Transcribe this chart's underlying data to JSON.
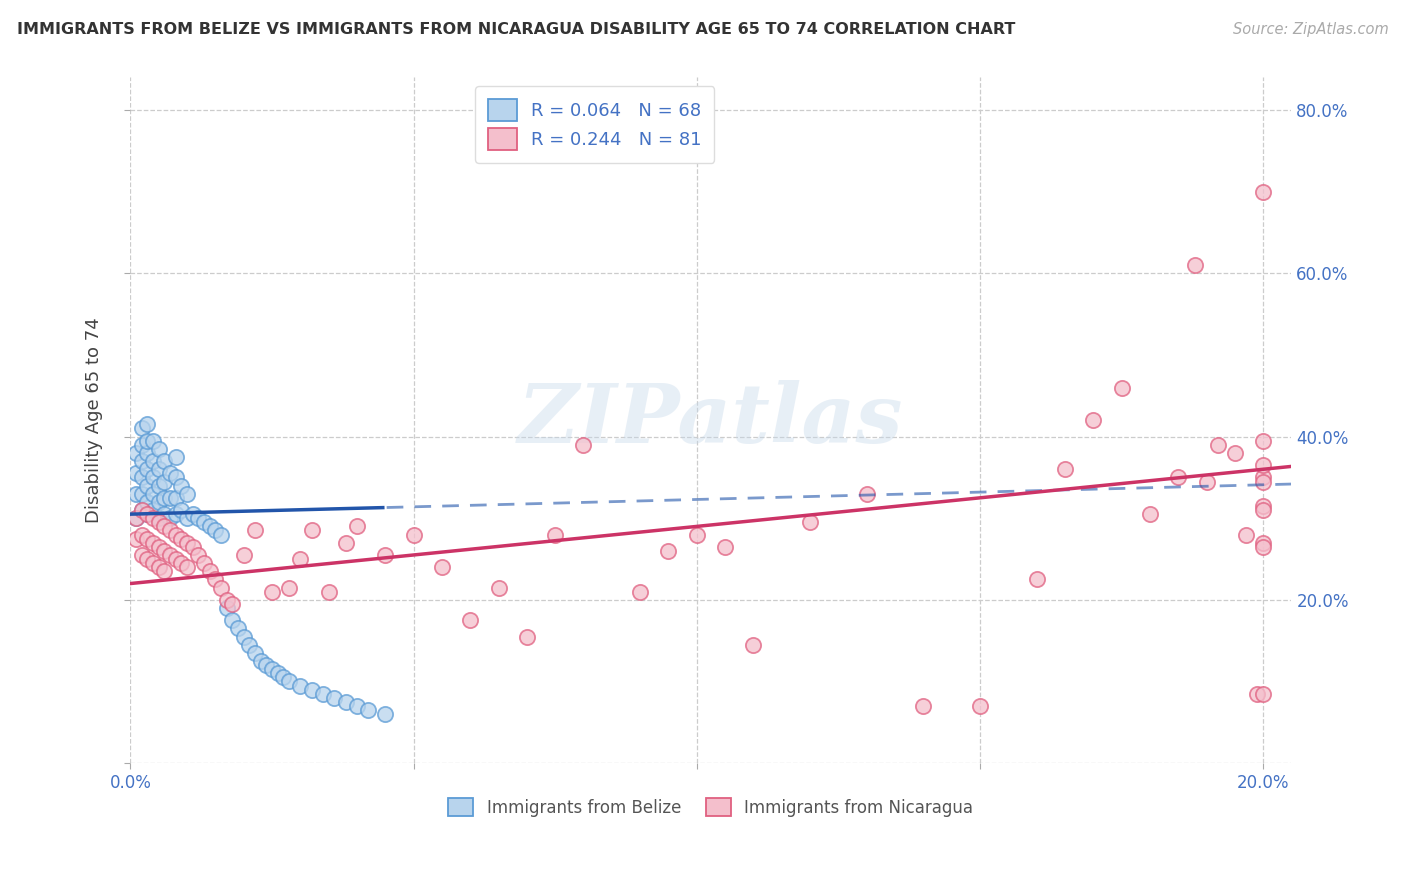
{
  "title": "IMMIGRANTS FROM BELIZE VS IMMIGRANTS FROM NICARAGUA DISABILITY AGE 65 TO 74 CORRELATION CHART",
  "source": "Source: ZipAtlas.com",
  "ylabel": "Disability Age 65 to 74",
  "xlabel_bottom_belize": "Immigrants from Belize",
  "xlabel_bottom_nicaragua": "Immigrants from Nicaragua",
  "xlim": [
    0.0,
    0.205
  ],
  "ylim": [
    0.0,
    0.84
  ],
  "xticks": [
    0.0,
    0.05,
    0.1,
    0.15,
    0.2
  ],
  "yticks": [
    0.0,
    0.2,
    0.4,
    0.6,
    0.8
  ],
  "xtick_labels": [
    "0.0%",
    "",
    "",
    "",
    "20.0%"
  ],
  "ytick_labels_right": [
    "",
    "20.0%",
    "40.0%",
    "60.0%",
    "80.0%"
  ],
  "belize_fill": "#b8d4ed",
  "belize_edge": "#5b9bd5",
  "nicaragua_fill": "#f4bfcc",
  "nicaragua_edge": "#e06080",
  "belize_R": 0.064,
  "belize_N": 68,
  "nicaragua_R": 0.244,
  "nicaragua_N": 81,
  "trend_belize_color": "#2255aa",
  "trend_nicaragua_color": "#cc3366",
  "background_color": "#ffffff",
  "grid_color": "#cccccc",
  "watermark": "ZIPatlas",
  "belize_x": [
    0.001,
    0.001,
    0.001,
    0.001,
    0.002,
    0.002,
    0.002,
    0.002,
    0.002,
    0.002,
    0.003,
    0.003,
    0.003,
    0.003,
    0.003,
    0.003,
    0.003,
    0.004,
    0.004,
    0.004,
    0.004,
    0.004,
    0.005,
    0.005,
    0.005,
    0.005,
    0.005,
    0.006,
    0.006,
    0.006,
    0.006,
    0.007,
    0.007,
    0.007,
    0.008,
    0.008,
    0.008,
    0.008,
    0.009,
    0.009,
    0.01,
    0.01,
    0.011,
    0.012,
    0.013,
    0.014,
    0.015,
    0.016,
    0.017,
    0.018,
    0.019,
    0.02,
    0.021,
    0.022,
    0.023,
    0.024,
    0.025,
    0.026,
    0.027,
    0.028,
    0.03,
    0.032,
    0.034,
    0.036,
    0.038,
    0.04,
    0.042,
    0.045
  ],
  "belize_y": [
    0.3,
    0.33,
    0.355,
    0.38,
    0.31,
    0.33,
    0.35,
    0.37,
    0.39,
    0.41,
    0.305,
    0.32,
    0.34,
    0.36,
    0.38,
    0.395,
    0.415,
    0.31,
    0.33,
    0.35,
    0.37,
    0.395,
    0.3,
    0.32,
    0.34,
    0.36,
    0.385,
    0.305,
    0.325,
    0.345,
    0.37,
    0.3,
    0.325,
    0.355,
    0.305,
    0.325,
    0.35,
    0.375,
    0.31,
    0.34,
    0.3,
    0.33,
    0.305,
    0.3,
    0.295,
    0.29,
    0.285,
    0.28,
    0.19,
    0.175,
    0.165,
    0.155,
    0.145,
    0.135,
    0.125,
    0.12,
    0.115,
    0.11,
    0.105,
    0.1,
    0.095,
    0.09,
    0.085,
    0.08,
    0.075,
    0.07,
    0.065,
    0.06
  ],
  "nicaragua_x": [
    0.001,
    0.001,
    0.002,
    0.002,
    0.002,
    0.003,
    0.003,
    0.003,
    0.004,
    0.004,
    0.004,
    0.005,
    0.005,
    0.005,
    0.006,
    0.006,
    0.006,
    0.007,
    0.007,
    0.008,
    0.008,
    0.009,
    0.009,
    0.01,
    0.01,
    0.011,
    0.012,
    0.013,
    0.014,
    0.015,
    0.016,
    0.017,
    0.018,
    0.02,
    0.022,
    0.025,
    0.028,
    0.03,
    0.032,
    0.035,
    0.038,
    0.04,
    0.045,
    0.05,
    0.055,
    0.06,
    0.065,
    0.07,
    0.075,
    0.08,
    0.09,
    0.095,
    0.1,
    0.105,
    0.11,
    0.12,
    0.13,
    0.14,
    0.15,
    0.16,
    0.165,
    0.17,
    0.175,
    0.18,
    0.185,
    0.188,
    0.19,
    0.192,
    0.195,
    0.197,
    0.199,
    0.2,
    0.2,
    0.2,
    0.2,
    0.2,
    0.2,
    0.2,
    0.2,
    0.2,
    0.2
  ],
  "nicaragua_y": [
    0.3,
    0.275,
    0.31,
    0.28,
    0.255,
    0.305,
    0.275,
    0.25,
    0.3,
    0.27,
    0.245,
    0.295,
    0.265,
    0.24,
    0.29,
    0.26,
    0.235,
    0.285,
    0.255,
    0.28,
    0.25,
    0.275,
    0.245,
    0.27,
    0.24,
    0.265,
    0.255,
    0.245,
    0.235,
    0.225,
    0.215,
    0.2,
    0.195,
    0.255,
    0.285,
    0.21,
    0.215,
    0.25,
    0.285,
    0.21,
    0.27,
    0.29,
    0.255,
    0.28,
    0.24,
    0.175,
    0.215,
    0.155,
    0.28,
    0.39,
    0.21,
    0.26,
    0.28,
    0.265,
    0.145,
    0.295,
    0.33,
    0.07,
    0.07,
    0.225,
    0.36,
    0.42,
    0.46,
    0.305,
    0.35,
    0.61,
    0.345,
    0.39,
    0.38,
    0.28,
    0.085,
    0.7,
    0.315,
    0.085,
    0.35,
    0.395,
    0.27,
    0.265,
    0.31,
    0.345,
    0.365
  ]
}
